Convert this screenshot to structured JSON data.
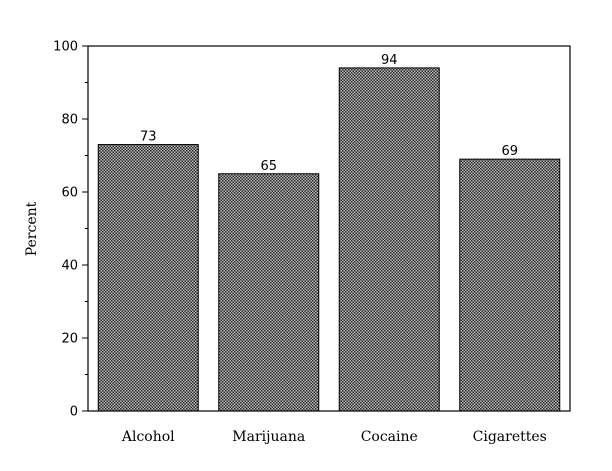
{
  "chart_data": {
    "type": "bar",
    "categories": [
      "Alcohol",
      "Marijuana",
      "Cocaine",
      "Cigarettes"
    ],
    "values": [
      73,
      65,
      94,
      69
    ],
    "data_labels": [
      "73",
      "65",
      "94",
      "69"
    ],
    "title": "",
    "xlabel": "",
    "ylabel": "Percent",
    "ylim": [
      0,
      100
    ],
    "yticks": [
      0,
      20,
      40,
      60,
      80,
      100
    ],
    "grid": false,
    "bar_color": "#8a8a8a",
    "bar_pattern": "dotted-crosshatch"
  }
}
